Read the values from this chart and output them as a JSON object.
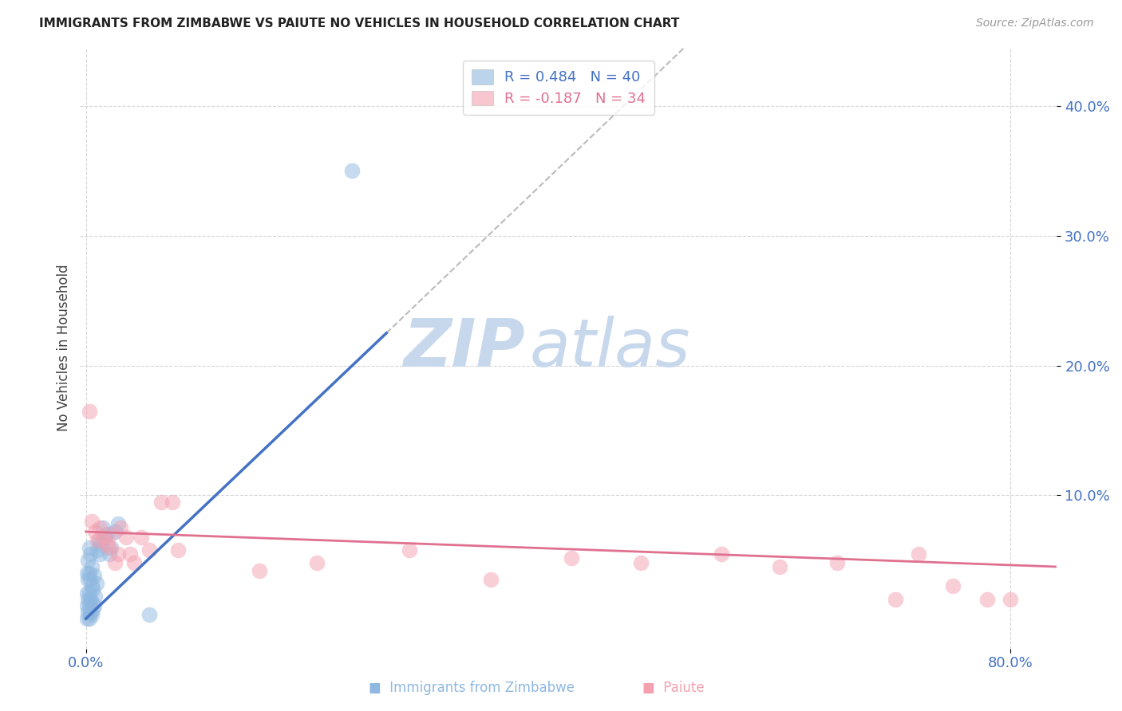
{
  "title": "IMMIGRANTS FROM ZIMBABWE VS PAIUTE NO VEHICLES IN HOUSEHOLD CORRELATION CHART",
  "source": "Source: ZipAtlas.com",
  "ylabel": "No Vehicles in Household",
  "legend_blue_r": "R = 0.484",
  "legend_blue_n": "N = 40",
  "legend_pink_r": "R = -0.187",
  "legend_pink_n": "N = 34",
  "blue_color": "#8FB8E0",
  "pink_color": "#F4A0B0",
  "trend_blue_color": "#4472C4",
  "trend_pink_color": "#E07090",
  "dashed_color": "#BBBBBB",
  "watermark_zip_color": "#C8D8EC",
  "watermark_atlas_color": "#C8D8EC",
  "background_color": "#FFFFFF",
  "grid_color": "#CCCCCC",
  "axis_label_color": "#4472C4",
  "title_color": "#222222",
  "source_color": "#999999",
  "xlim": [
    -0.005,
    0.84
  ],
  "ylim": [
    -0.018,
    0.445
  ],
  "xticks": [
    0.0,
    0.8
  ],
  "yticks": [
    0.1,
    0.2,
    0.3,
    0.4
  ],
  "blue_scatter_x": [
    0.001,
    0.001,
    0.001,
    0.001,
    0.002,
    0.002,
    0.002,
    0.002,
    0.003,
    0.003,
    0.003,
    0.003,
    0.003,
    0.004,
    0.004,
    0.004,
    0.004,
    0.005,
    0.005,
    0.005,
    0.005,
    0.006,
    0.006,
    0.007,
    0.007,
    0.008,
    0.009,
    0.01,
    0.011,
    0.012,
    0.013,
    0.015,
    0.016,
    0.018,
    0.02,
    0.022,
    0.025,
    0.028,
    0.055,
    0.23
  ],
  "blue_scatter_y": [
    0.005,
    0.015,
    0.025,
    0.04,
    0.01,
    0.02,
    0.035,
    0.05,
    0.005,
    0.015,
    0.025,
    0.04,
    0.06,
    0.01,
    0.02,
    0.035,
    0.055,
    0.008,
    0.018,
    0.03,
    0.045,
    0.012,
    0.028,
    0.015,
    0.038,
    0.022,
    0.032,
    0.058,
    0.065,
    0.055,
    0.062,
    0.075,
    0.068,
    0.07,
    0.055,
    0.06,
    0.072,
    0.078,
    0.008,
    0.35
  ],
  "pink_scatter_x": [
    0.003,
    0.005,
    0.008,
    0.01,
    0.012,
    0.015,
    0.018,
    0.02,
    0.022,
    0.025,
    0.028,
    0.03,
    0.035,
    0.038,
    0.042,
    0.048,
    0.055,
    0.065,
    0.075,
    0.08,
    0.15,
    0.2,
    0.28,
    0.35,
    0.42,
    0.48,
    0.55,
    0.6,
    0.65,
    0.7,
    0.72,
    0.75,
    0.78,
    0.8
  ],
  "pink_scatter_y": [
    0.165,
    0.08,
    0.072,
    0.065,
    0.075,
    0.068,
    0.062,
    0.06,
    0.07,
    0.048,
    0.055,
    0.075,
    0.068,
    0.055,
    0.048,
    0.068,
    0.058,
    0.095,
    0.095,
    0.058,
    0.042,
    0.048,
    0.058,
    0.035,
    0.052,
    0.048,
    0.055,
    0.045,
    0.048,
    0.02,
    0.055,
    0.03,
    0.02,
    0.02
  ],
  "blue_trend_x_start": 0.0,
  "blue_trend_x_solid_end": 0.26,
  "blue_trend_x_dashed_end": 0.84,
  "blue_trend_y_start": 0.005,
  "blue_trend_y_at_solid_end": 0.225,
  "blue_trend_y_at_dashed_end": 0.72,
  "pink_trend_x_start": 0.0,
  "pink_trend_x_end": 0.84,
  "pink_trend_y_start": 0.072,
  "pink_trend_y_end": 0.045
}
